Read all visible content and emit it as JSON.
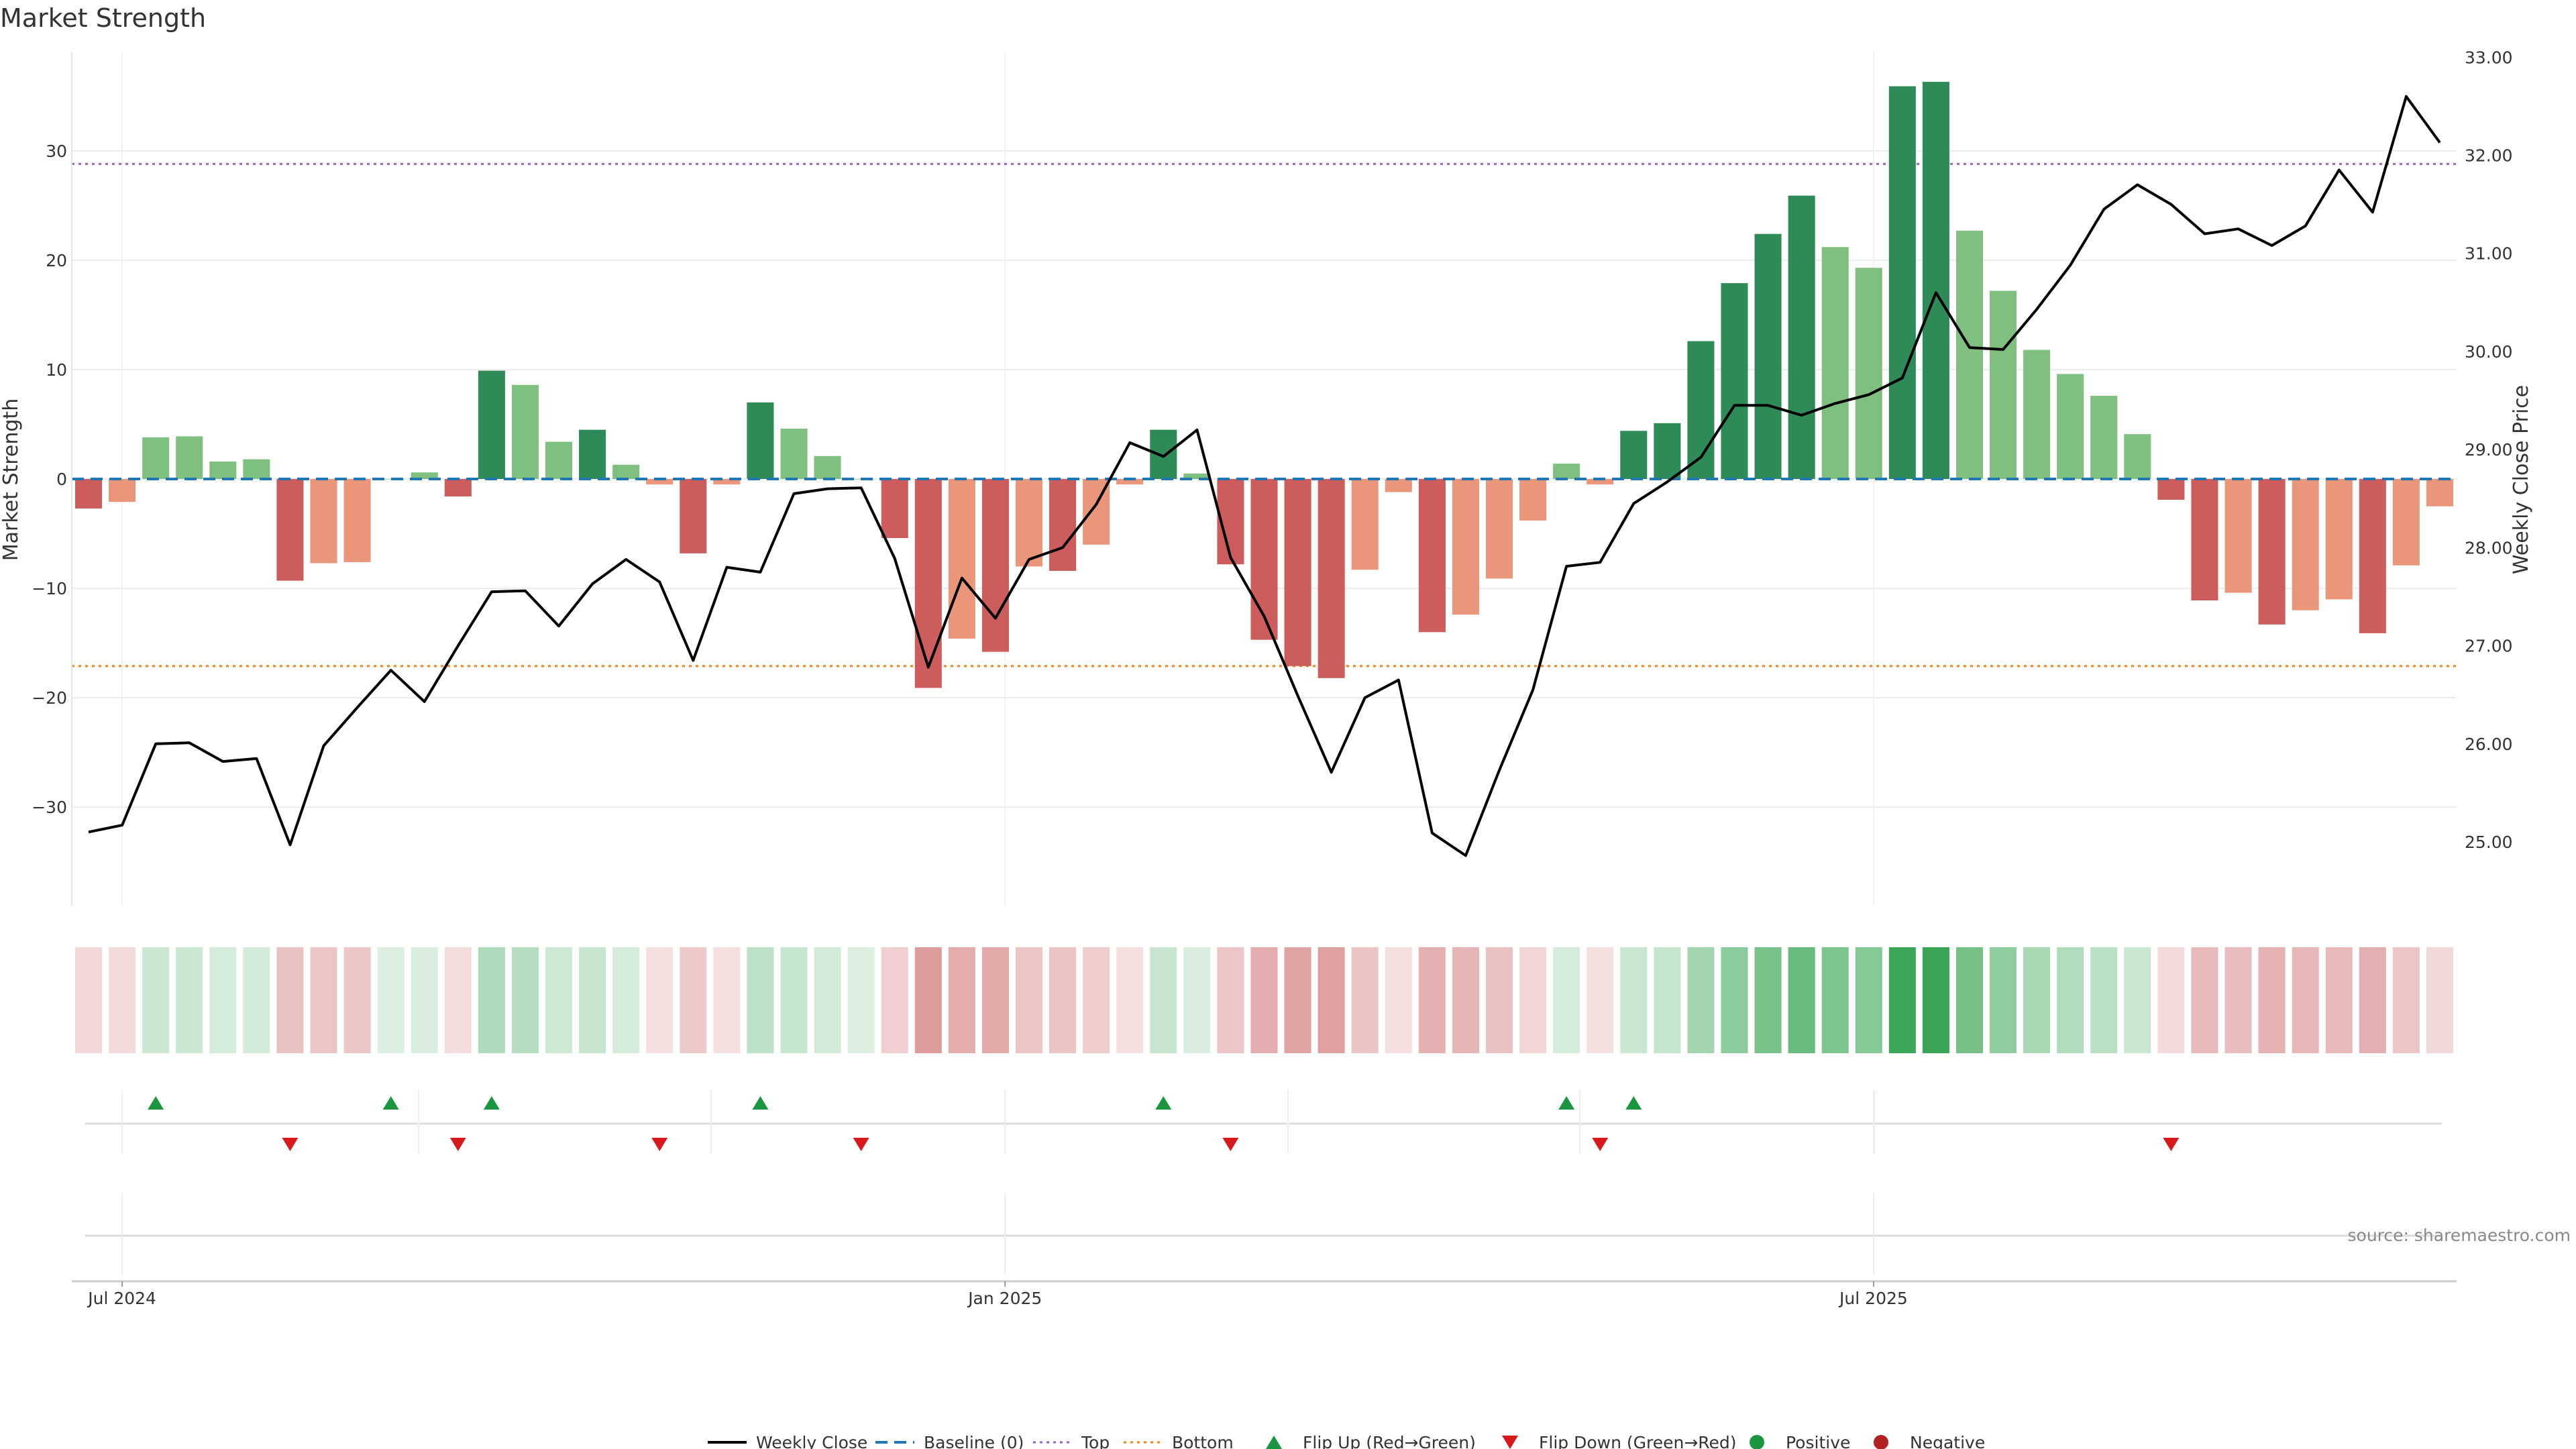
{
  "chart_data": {
    "type": "bar",
    "title": "Market Strength",
    "ylabel": "Market Strength",
    "y2label": "Weekly Close Price",
    "source": "source: sharemaestro.com",
    "ylim": [
      -39,
      39
    ],
    "y2lim": [
      24.35,
      33.05
    ],
    "yticks": [
      -30,
      -20,
      -10,
      0,
      10,
      20,
      30
    ],
    "ytick_labels": [
      "−30",
      "−20",
      "−10",
      "0",
      "10",
      "20",
      "30"
    ],
    "y2ticks": [
      25,
      26,
      27,
      28,
      29,
      30,
      31,
      32,
      33
    ],
    "y2tick_labels": [
      "25.00",
      "26.00",
      "27.00",
      "28.00",
      "29.00",
      "30.00",
      "31.00",
      "32.00",
      "33.00"
    ],
    "x_start": "2024-06-24",
    "week_step_days": 7,
    "xticks": [
      {
        "date": "2024-07-01",
        "label": "Jul 2024"
      },
      {
        "date": "2025-01-01",
        "label": "Jan 2025"
      },
      {
        "date": "2025-07-01",
        "label": "Jul 2025"
      }
    ],
    "grid": true,
    "legend_position": "bottom",
    "reference_lines": {
      "baseline": 0,
      "top": 28.8,
      "bottom": -17.1
    },
    "colors": {
      "strong_positive": "#2e8b57",
      "weak_positive": "#7fbf7f",
      "strong_negative": "#cd5c5c",
      "weak_negative": "#e9967a",
      "close_line": "#000000",
      "baseline": "#1f77b4",
      "top_line": "#9467bd",
      "bottom_line": "#ff7f0e",
      "flip_up": "#1a9641",
      "flip_down": "#d7191c",
      "positive_dot": "#1a9641",
      "negative_dot": "#b22222"
    },
    "series": [
      {
        "name": "Market Strength",
        "values": [
          -2.7,
          -2.1,
          3.8,
          3.9,
          1.6,
          1.8,
          -9.3,
          -7.7,
          -7.6,
          0,
          0.6,
          -1.6,
          9.9,
          8.6,
          3.4,
          4.5,
          1.3,
          -0.5,
          -6.8,
          -0.5,
          7.0,
          4.6,
          2.1,
          0,
          -5.4,
          -19.1,
          -14.6,
          -15.8,
          -8.0,
          -8.4,
          -6.0,
          -0.5,
          4.5,
          0.5,
          -7.8,
          -14.7,
          -17.1,
          -18.2,
          -8.3,
          -1.2,
          -14.0,
          -12.4,
          -9.1,
          -3.8,
          1.4,
          -0.5,
          4.4,
          5.1,
          12.6,
          17.9,
          22.4,
          25.9,
          21.2,
          19.3,
          35.9,
          36.3,
          22.7,
          17.2,
          11.8,
          9.6,
          7.6,
          4.1,
          -1.9,
          -11.1,
          -10.4,
          -13.3,
          -12.0,
          -11.0,
          -14.1,
          -7.9,
          -2.5
        ]
      },
      {
        "name": "Weekly Close",
        "values": [
          25.1,
          25.17,
          26.0,
          26.01,
          25.82,
          25.85,
          24.97,
          25.98,
          26.37,
          26.75,
          26.43,
          27.0,
          27.55,
          27.56,
          27.2,
          27.63,
          27.88,
          27.65,
          26.85,
          27.8,
          27.75,
          28.55,
          28.6,
          28.61,
          27.89,
          26.78,
          27.69,
          27.28,
          27.88,
          28.0,
          28.44,
          29.07,
          28.93,
          29.2,
          27.9,
          27.3,
          26.49,
          25.71,
          26.47,
          26.65,
          25.09,
          24.86,
          25.73,
          26.55,
          27.81,
          27.85,
          28.45,
          28.67,
          28.92,
          29.45,
          29.45,
          29.35,
          29.47,
          29.56,
          29.73,
          30.6,
          30.04,
          30.02,
          30.43,
          30.88,
          31.45,
          31.7,
          31.5,
          31.2,
          31.25,
          31.08,
          31.28,
          31.85,
          31.42,
          32.6,
          32.13
        ]
      }
    ],
    "flips": {
      "up_weeks": [
        2,
        9,
        12,
        20,
        32,
        44,
        46
      ],
      "down_weeks": [
        6,
        11,
        17,
        23,
        34,
        45,
        62
      ]
    },
    "legend": [
      {
        "key": "weekly-close",
        "label": "Weekly Close"
      },
      {
        "key": "baseline",
        "label": "Baseline (0)"
      },
      {
        "key": "top",
        "label": "Top"
      },
      {
        "key": "bottom",
        "label": "Bottom"
      },
      {
        "key": "flip-up",
        "label": "Flip Up (Red→Green)"
      },
      {
        "key": "flip-down",
        "label": "Flip Down (Green→Red)"
      },
      {
        "key": "positive",
        "label": "Positive"
      },
      {
        "key": "negative",
        "label": "Negative"
      }
    ]
  }
}
